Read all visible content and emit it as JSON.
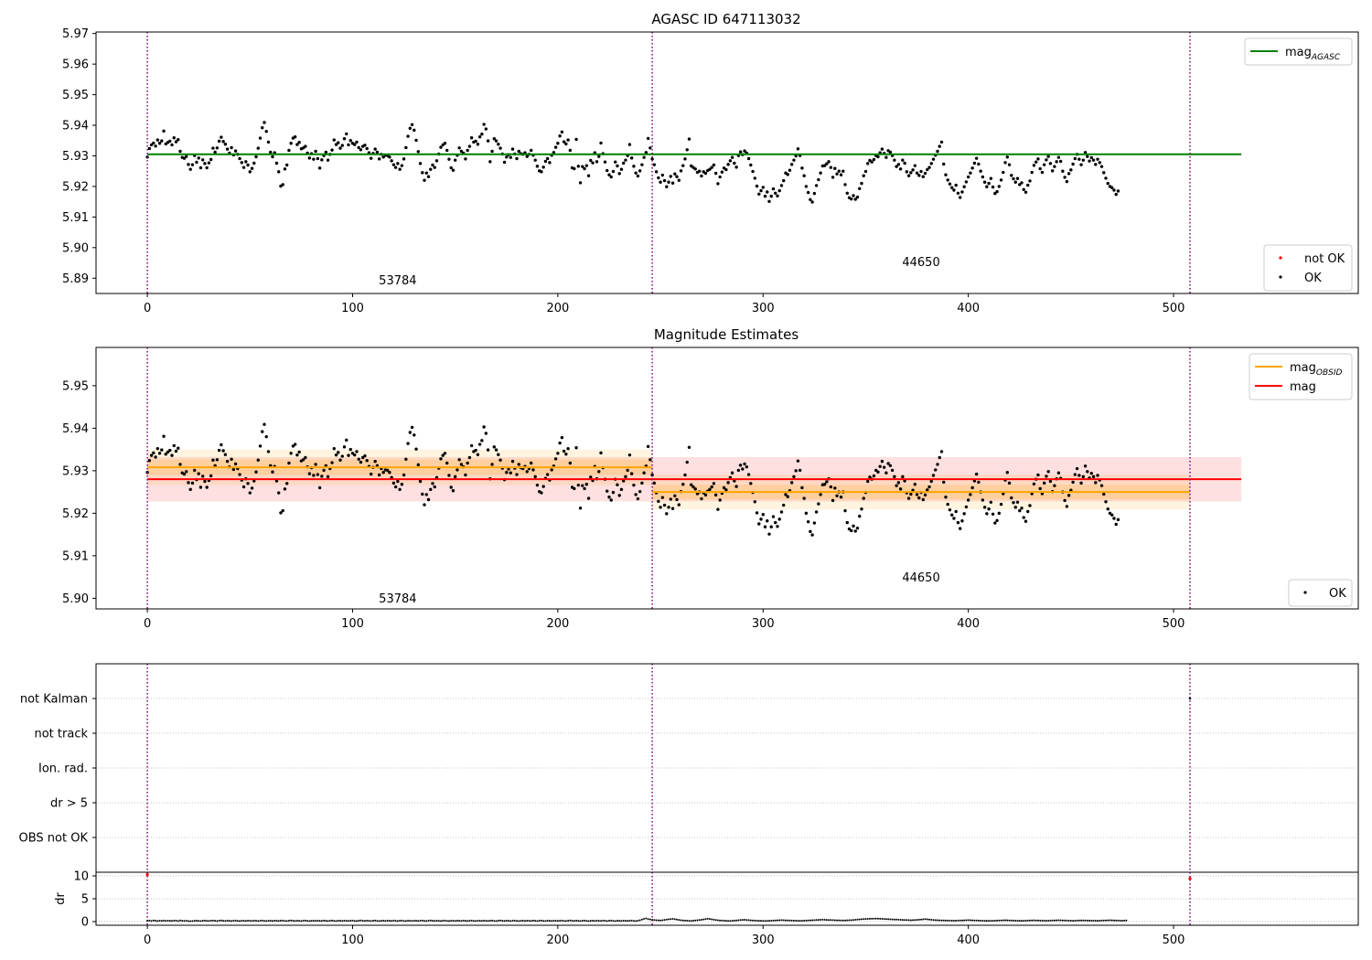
{
  "chart_data": [
    {
      "type": "scatter",
      "title": "AGASC ID 647113032",
      "xlim": [
        -25,
        590
      ],
      "ylim": [
        5.885,
        5.9705
      ],
      "x_ticks": [
        0,
        100,
        200,
        300,
        400,
        500
      ],
      "y_ticks": [
        5.89,
        5.9,
        5.91,
        5.92,
        5.93,
        5.94,
        5.95,
        5.96,
        5.97
      ],
      "grid": false,
      "obs_boundaries": [
        0,
        246,
        508
      ],
      "obs_labels": [
        {
          "text": "53784",
          "x": 122,
          "y": 5.888
        },
        {
          "text": "44650",
          "x": 377,
          "y": 5.894
        }
      ],
      "lines": [
        {
          "name": "mag_AGASC",
          "y": 5.9305,
          "x": [
            0,
            533
          ],
          "color": "#008000"
        }
      ],
      "legend_top": {
        "placement": "top-right",
        "entries": [
          {
            "label": "mag",
            "sub": "AGASC",
            "kind": "line",
            "color": "#008000"
          }
        ]
      },
      "legend_bottom": {
        "placement": "bottom-right",
        "entries": [
          {
            "label": "not OK",
            "kind": "point",
            "color": "#ff0000"
          },
          {
            "label": "OK",
            "kind": "point",
            "color": "#000000"
          }
        ]
      },
      "series": [
        {
          "name": "OK",
          "color": "#000000",
          "source": "magnitude_samples"
        }
      ]
    },
    {
      "type": "scatter",
      "title": "Magnitude Estimates",
      "xlim": [
        -25,
        590
      ],
      "ylim": [
        5.8975,
        5.959
      ],
      "x_ticks": [
        0,
        100,
        200,
        300,
        400,
        500
      ],
      "y_ticks": [
        5.9,
        5.91,
        5.92,
        5.93,
        5.94,
        5.95
      ],
      "grid": false,
      "obs_boundaries": [
        0,
        246,
        508
      ],
      "obs_labels": [
        {
          "text": "53784",
          "x": 122,
          "y": 5.899
        },
        {
          "text": "44650",
          "x": 377,
          "y": 5.904
        }
      ],
      "bands": [
        {
          "x": [
            0,
            533
          ],
          "y": [
            5.9228,
            5.9332
          ],
          "color": "#ff0000",
          "opacity": 0.12
        },
        {
          "x": [
            0,
            246
          ],
          "y": [
            5.9266,
            5.935
          ],
          "color": "#ffa500",
          "opacity": 0.12
        },
        {
          "x": [
            0,
            246
          ],
          "y": [
            5.929,
            5.9326
          ],
          "color": "#ffa500",
          "opacity": 0.18
        },
        {
          "x": [
            246,
            508
          ],
          "y": [
            5.9209,
            5.9291
          ],
          "color": "#ffa500",
          "opacity": 0.12
        },
        {
          "x": [
            246,
            508
          ],
          "y": [
            5.9233,
            5.9267
          ],
          "color": "#ffa500",
          "opacity": 0.18
        }
      ],
      "lines": [
        {
          "name": "mag_OBSID_53784",
          "y": 5.9308,
          "x": [
            0,
            246
          ],
          "color": "#ffa500"
        },
        {
          "name": "mag_OBSID_44650",
          "y": 5.925,
          "x": [
            246,
            508
          ],
          "color": "#ffa500"
        },
        {
          "name": "mag",
          "y": 5.928,
          "x": [
            0,
            533
          ],
          "color": "#ff0000"
        }
      ],
      "legend_top": {
        "placement": "top-right",
        "entries": [
          {
            "label": "mag",
            "sub": "OBSID",
            "kind": "line",
            "color": "#ffa500"
          },
          {
            "label": "mag",
            "kind": "line",
            "color": "#ff0000"
          }
        ]
      },
      "legend_bottom": {
        "placement": "bottom-right",
        "entries": [
          {
            "label": "OK",
            "kind": "point",
            "color": "#000000"
          }
        ]
      },
      "series": [
        {
          "name": "OK",
          "color": "#000000",
          "source": "magnitude_samples"
        }
      ]
    },
    {
      "type": "scatter",
      "title": "",
      "xlim": [
        -25,
        590
      ],
      "ylim": [
        -0.5,
        5.5
      ],
      "categories": [
        "OBS not OK",
        "dr > 5",
        "Ion. rad.",
        "not track",
        "not Kalman"
      ],
      "x_ticks": [
        0,
        100,
        200,
        300,
        400,
        500
      ],
      "grid": true,
      "obs_boundaries": [
        0,
        246,
        508
      ],
      "flags": [
        {
          "category": "not Kalman",
          "x": 508
        }
      ]
    },
    {
      "type": "scatter",
      "title": "",
      "ylabel": "dr",
      "xlim": [
        -25,
        590
      ],
      "ylim": [
        -0.8,
        10.8
      ],
      "x_ticks": [
        0,
        100,
        200,
        300,
        400,
        500
      ],
      "y_ticks": [
        0,
        5,
        10
      ],
      "grid": true,
      "obs_boundaries": [
        0,
        246,
        508
      ],
      "flagged_points": [
        {
          "x": 0,
          "y": 10.3,
          "color": "#ff0000"
        },
        {
          "x": 508,
          "y": 9.4,
          "color": "#ff0000"
        }
      ],
      "series": [
        {
          "name": "dr",
          "color": "#000000",
          "source": "dr_samples"
        }
      ]
    }
  ],
  "magnitude_samples": [
    5.9296,
    5.9324,
    5.9336,
    5.9342,
    5.9332,
    5.9352,
    5.9341,
    5.9349,
    5.9381,
    5.9339,
    5.9344,
    5.9348,
    5.9336,
    5.9359,
    5.9346,
    5.9353,
    5.9315,
    5.9295,
    5.9292,
    5.9298,
    5.9272,
    5.9256,
    5.9271,
    5.9301,
    5.9279,
    5.9293,
    5.9261,
    5.9287,
    5.9275,
    5.9261,
    5.9277,
    5.9288,
    5.9325,
    5.9312,
    5.9326,
    5.9348,
    5.9361,
    5.9347,
    5.9338,
    5.9322,
    5.9309,
    5.9327,
    5.9303,
    5.9316,
    5.9305,
    5.9291,
    5.9278,
    5.9262,
    5.9281,
    5.927,
    5.9248,
    5.9259,
    5.9276,
    5.9297,
    5.9325,
    5.9358,
    5.9392,
    5.9409,
    5.938,
    5.9345,
    5.9312,
    5.9297,
    5.931,
    5.9276,
    5.9248,
    5.9201,
    5.9206,
    5.9257,
    5.927,
    5.9318,
    5.9341,
    5.9358,
    5.9362,
    5.9337,
    5.9344,
    5.9323,
    5.9326,
    5.9331,
    5.9309,
    5.9293,
    5.9307,
    5.9289,
    5.9315,
    5.9291,
    5.926,
    5.9287,
    5.9301,
    5.9312,
    5.9286,
    5.9305,
    5.9319,
    5.9352,
    5.9337,
    5.9343,
    5.9325,
    5.9334,
    5.9356,
    5.9372,
    5.9336,
    5.935,
    5.9341,
    5.9337,
    5.9345,
    5.9327,
    5.932,
    5.9331,
    5.9335,
    5.9324,
    5.931,
    5.9292,
    5.9308,
    5.9322,
    5.9312,
    5.929,
    5.9305,
    5.9296,
    5.9302,
    5.9301,
    5.9296,
    5.9284,
    5.9271,
    5.9262,
    5.9275,
    5.9256,
    5.9268,
    5.929,
    5.9327,
    5.9364,
    5.939,
    5.9402,
    5.9384,
    5.9351,
    5.9314,
    5.9275,
    5.9245,
    5.922,
    5.9244,
    5.9232,
    5.9256,
    5.927,
    5.9262,
    5.9284,
    5.9306,
    5.9328,
    5.9336,
    5.9341,
    5.9318,
    5.9289,
    5.9261,
    5.9253,
    5.9286,
    5.9302,
    5.9326,
    5.9315,
    5.9309,
    5.929,
    5.9318,
    5.9331,
    5.9359,
    5.9345,
    5.9348,
    5.9338,
    5.9362,
    5.9371,
    5.9403,
    5.9388,
    5.9349,
    5.9281,
    5.9315,
    5.9356,
    5.9349,
    5.9338,
    5.9325,
    5.9306,
    5.9279,
    5.9296,
    5.9304,
    5.9295,
    5.9322,
    5.9306,
    5.9291,
    5.9315,
    5.9307,
    5.9305,
    5.931,
    5.9298,
    5.9305,
    5.9318,
    5.9302,
    5.9286,
    5.9266,
    5.9251,
    5.9248,
    5.9263,
    5.9282,
    5.9291,
    5.9278,
    5.9302,
    5.9311,
    5.9328,
    5.9341,
    5.9365,
    5.9378,
    5.9346,
    5.9339,
    5.9352,
    5.9318,
    5.9261,
    5.9258,
    5.9354,
    5.9266,
    5.9212,
    5.9265,
    5.9258,
    5.9268,
    5.9235,
    5.9285,
    5.9277,
    5.931,
    5.9281,
    5.9298,
    5.9342,
    5.9307,
    5.928,
    5.9252,
    5.9238,
    5.9231,
    5.9249,
    5.928,
    5.9267,
    5.9242,
    5.9256,
    5.9276,
    5.9286,
    5.9301,
    5.9337,
    5.9293,
    5.9266,
    5.9244,
    5.9234,
    5.9251,
    5.9271,
    5.9295,
    5.9311,
    5.9357,
    5.9326,
    5.929,
    5.9271,
    5.9248,
    5.9228,
    5.9214,
    5.9237,
    5.9219,
    5.9199,
    5.9214,
    5.9233,
    5.9211,
    5.9241,
    5.9232,
    5.922,
    5.9251,
    5.9268,
    5.929,
    5.932,
    5.9355,
    5.9267,
    5.9262,
    5.9257,
    5.9246,
    5.925,
    5.9234,
    5.9248,
    5.9243,
    5.9252,
    5.9256,
    5.9262,
    5.927,
    5.9243,
    5.9209,
    5.9231,
    5.9247,
    5.926,
    5.9255,
    5.9272,
    5.9284,
    5.9295,
    5.9276,
    5.9263,
    5.9301,
    5.9313,
    5.9304,
    5.9316,
    5.9309,
    5.9291,
    5.927,
    5.9249,
    5.9227,
    5.9201,
    5.9175,
    5.9186,
    5.9197,
    5.9168,
    5.9182,
    5.9151,
    5.9168,
    5.9192,
    5.9178,
    5.9169,
    5.9186,
    5.9203,
    5.9219,
    5.9244,
    5.9239,
    5.9253,
    5.9272,
    5.9286,
    5.93,
    5.9323,
    5.9301,
    5.926,
    5.9235,
    5.92,
    5.918,
    5.9157,
    5.9149,
    5.9177,
    5.9203,
    5.9222,
    5.9244,
    5.9267,
    5.9268,
    5.9274,
    5.9281,
    5.9262,
    5.923,
    5.9259,
    5.9241,
    5.925,
    5.9238,
    5.925,
    5.9206,
    5.9178,
    5.9163,
    5.9159,
    5.917,
    5.9158,
    5.9165,
    5.9193,
    5.921,
    5.9235,
    5.9249,
    5.9275,
    5.9285,
    5.928,
    5.9288,
    5.9301,
    5.9297,
    5.931,
    5.9322,
    5.9308,
    5.9295,
    5.9317,
    5.9312,
    5.9301,
    5.9286,
    5.9265,
    5.9272,
    5.9257,
    5.9286,
    5.9276,
    5.9248,
    5.9235,
    5.9245,
    5.9254,
    5.9268,
    5.9244,
    5.9236,
    5.9249,
    5.9232,
    5.9243,
    5.9255,
    5.9262,
    5.9275,
    5.9289,
    5.9302,
    5.9315,
    5.9331,
    5.9345,
    5.9273,
    5.9238,
    5.9221,
    5.9208,
    5.9196,
    5.9188,
    5.9204,
    5.9178,
    5.9164,
    5.9182,
    5.9199,
    5.9215,
    5.9231,
    5.9244,
    5.926,
    5.9276,
    5.9292,
    5.9273,
    5.925,
    5.9231,
    5.9214,
    5.9199,
    5.921,
    5.9226,
    5.9198,
    5.9177,
    5.9183,
    5.92,
    5.9221,
    5.9246,
    5.9278,
    5.9296,
    5.9271,
    5.9236,
    5.9225,
    5.9214,
    5.9226,
    5.9206,
    5.9212,
    5.919,
    5.9181,
    5.9204,
    5.9218,
    5.9246,
    5.9269,
    5.928,
    5.929,
    5.9258,
    5.9246,
    5.9271,
    5.9287,
    5.9298,
    5.9275,
    5.9251,
    5.9265,
    5.9281,
    5.9295,
    5.9282,
    5.925,
    5.923,
    5.9216,
    5.9242,
    5.9254,
    5.9273,
    5.9291,
    5.9305,
    5.9289,
    5.9271,
    5.9286,
    5.9311,
    5.9298,
    5.9283,
    5.9294,
    5.9286,
    5.9272,
    5.9289,
    5.9278,
    5.9265,
    5.9245,
    5.9227,
    5.921,
    5.92,
    5.9196,
    5.9188,
    5.9174,
    5.9185
  ],
  "dr_samples": [
    0.18,
    0.22,
    0.16,
    0.25,
    0.19,
    0.12,
    0.21,
    0.17,
    0.23,
    0.15,
    0.2,
    0.18,
    0.14,
    0.22,
    0.19,
    0.13,
    0.24,
    0.18,
    0.16,
    0.21,
    0.11,
    0.09,
    0.13,
    0.17,
    0.2,
    0.15,
    0.12,
    0.18,
    0.22,
    0.16,
    0.14,
    0.19,
    0.23,
    0.17,
    0.13,
    0.2,
    0.24,
    0.18,
    0.15,
    0.21,
    0.17,
    0.13,
    0.19,
    0.22,
    0.16,
    0.12,
    0.18,
    0.21,
    0.15,
    0.2,
    0.17,
    0.14,
    0.22,
    0.18,
    0.13,
    0.19,
    0.23,
    0.16,
    0.12,
    0.2,
    0.17,
    0.14,
    0.21,
    0.18,
    0.15,
    0.19,
    0.22,
    0.16,
    0.13,
    0.2,
    0.24,
    0.18,
    0.15,
    0.21,
    0.17,
    0.13,
    0.19,
    0.22,
    0.16,
    0.12,
    0.18,
    0.21,
    0.15,
    0.2,
    0.17,
    0.14,
    0.22,
    0.18,
    0.13,
    0.19,
    0.23,
    0.16,
    0.12,
    0.2,
    0.17,
    0.14,
    0.21,
    0.18,
    0.15,
    0.19,
    0.22,
    0.16,
    0.13,
    0.2,
    0.24,
    0.18,
    0.15,
    0.21,
    0.17,
    0.13,
    0.19,
    0.22,
    0.16,
    0.12,
    0.18,
    0.21,
    0.15,
    0.2,
    0.17,
    0.14,
    0.22,
    0.18,
    0.13,
    0.19,
    0.23,
    0.16,
    0.12,
    0.2,
    0.17,
    0.14,
    0.21,
    0.18,
    0.15,
    0.19,
    0.22,
    0.16,
    0.13,
    0.2,
    0.24,
    0.18,
    0.15,
    0.21,
    0.17,
    0.13,
    0.19,
    0.22,
    0.16,
    0.12,
    0.18,
    0.21,
    0.15,
    0.2,
    0.17,
    0.14,
    0.22,
    0.18,
    0.13,
    0.19,
    0.23,
    0.16,
    0.12,
    0.2,
    0.17,
    0.14,
    0.21,
    0.18,
    0.15,
    0.19,
    0.22,
    0.16,
    0.13,
    0.2,
    0.24,
    0.18,
    0.15,
    0.21,
    0.17,
    0.13,
    0.19,
    0.22,
    0.16,
    0.12,
    0.18,
    0.21,
    0.15,
    0.2,
    0.17,
    0.14,
    0.22,
    0.18,
    0.13,
    0.19,
    0.23,
    0.16,
    0.12,
    0.2,
    0.17,
    0.14,
    0.21,
    0.18,
    0.15,
    0.19,
    0.22,
    0.16,
    0.13,
    0.2,
    0.24,
    0.18,
    0.15,
    0.21,
    0.17,
    0.13,
    0.19,
    0.22,
    0.16,
    0.12,
    0.18,
    0.21,
    0.15,
    0.2,
    0.17,
    0.14,
    0.22,
    0.18,
    0.13,
    0.19,
    0.23,
    0.16,
    0.12,
    0.2,
    0.17,
    0.14,
    0.21,
    0.18,
    0.15,
    0.19,
    0.22,
    0.16,
    0.13,
    0.2,
    0.3,
    0.45,
    0.6,
    0.7,
    0.55,
    0.48,
    0.4,
    0.35,
    0.3,
    0.28,
    0.25,
    0.3,
    0.38,
    0.45,
    0.5,
    0.55,
    0.6,
    0.52,
    0.45,
    0.38,
    0.3,
    0.25,
    0.22,
    0.2,
    0.18,
    0.16,
    0.2,
    0.25,
    0.3,
    0.35,
    0.4,
    0.48,
    0.55,
    0.62,
    0.58,
    0.5,
    0.42,
    0.35,
    0.3,
    0.26,
    0.22,
    0.2,
    0.18,
    0.16,
    0.15,
    0.18,
    0.22,
    0.26,
    0.3,
    0.34,
    0.38,
    0.4,
    0.36,
    0.32,
    0.28,
    0.25,
    0.22,
    0.2,
    0.18,
    0.17,
    0.16,
    0.15,
    0.16,
    0.18,
    0.2,
    0.22,
    0.25,
    0.28,
    0.3,
    0.32,
    0.3,
    0.28,
    0.26,
    0.24,
    0.22,
    0.2,
    0.19,
    0.18,
    0.17,
    0.18,
    0.2,
    0.22,
    0.25,
    0.28,
    0.3,
    0.33,
    0.36,
    0.38,
    0.4,
    0.42,
    0.4,
    0.38,
    0.36,
    0.34,
    0.32,
    0.3,
    0.28,
    0.27,
    0.26,
    0.25,
    0.26,
    0.28,
    0.3,
    0.33,
    0.36,
    0.4,
    0.44,
    0.48,
    0.52,
    0.55,
    0.58,
    0.6,
    0.62,
    0.63,
    0.64,
    0.65,
    0.64,
    0.62,
    0.6,
    0.58,
    0.55,
    0.52,
    0.5,
    0.48,
    0.46,
    0.44,
    0.42,
    0.4,
    0.38,
    0.36,
    0.34,
    0.32,
    0.3,
    0.32,
    0.35,
    0.38,
    0.42,
    0.46,
    0.5,
    0.54,
    0.5,
    0.45,
    0.4,
    0.36,
    0.32,
    0.3,
    0.28,
    0.26,
    0.25,
    0.24,
    0.23,
    0.22,
    0.21,
    0.2,
    0.21,
    0.22,
    0.24,
    0.26,
    0.28,
    0.3,
    0.32,
    0.3,
    0.28,
    0.26,
    0.24,
    0.22,
    0.2,
    0.19,
    0.18,
    0.17,
    0.16,
    0.17,
    0.18,
    0.2,
    0.22,
    0.24,
    0.26,
    0.28,
    0.3,
    0.28,
    0.26,
    0.24,
    0.22,
    0.2,
    0.19,
    0.18,
    0.17,
    0.18,
    0.2,
    0.22,
    0.24,
    0.26,
    0.28,
    0.26,
    0.24,
    0.22,
    0.2,
    0.19,
    0.18,
    0.2,
    0.22,
    0.24,
    0.26,
    0.28,
    0.3,
    0.28,
    0.26,
    0.24,
    0.22,
    0.2,
    0.19,
    0.18,
    0.2,
    0.22,
    0.24,
    0.26,
    0.25,
    0.24,
    0.23,
    0.22,
    0.21,
    0.2,
    0.19,
    0.18,
    0.2,
    0.22,
    0.24,
    0.26,
    0.28,
    0.3,
    0.28,
    0.26,
    0.24,
    0.22,
    0.2,
    0.21,
    0.22,
    0.24
  ]
}
